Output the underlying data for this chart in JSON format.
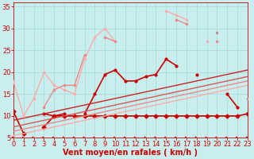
{
  "xlabel": "Vent moyen/en rafales ( km/h )",
  "xlim": [
    0,
    23
  ],
  "ylim": [
    5,
    36
  ],
  "yticks": [
    5,
    10,
    15,
    20,
    25,
    30,
    35
  ],
  "xticks": [
    0,
    1,
    2,
    3,
    4,
    5,
    6,
    7,
    8,
    9,
    10,
    11,
    12,
    13,
    14,
    15,
    16,
    17,
    18,
    19,
    20,
    21,
    22,
    23
  ],
  "bg_color": "#c8eeee",
  "grid_color": "#aadddd",
  "lines": [
    {
      "x": [
        0,
        1,
        2,
        3,
        4,
        5,
        6,
        7,
        8,
        9,
        10,
        11,
        12,
        13,
        14,
        15,
        16,
        17,
        18,
        19,
        20,
        21,
        22,
        23
      ],
      "y": [
        11,
        6,
        null,
        7.5,
        10,
        10,
        10,
        10,
        10,
        10,
        10,
        10,
        10,
        10,
        10,
        10,
        10,
        10,
        10,
        10,
        10,
        10,
        10,
        10.5
      ],
      "color": "#cc0000",
      "lw": 1.2,
      "marker": "D",
      "ms": 2.5,
      "has_markers": true
    },
    {
      "x": [
        0,
        1,
        2,
        3,
        4,
        5,
        6,
        7,
        8,
        9,
        10,
        11,
        12,
        13,
        14,
        15,
        16,
        17,
        18,
        19,
        20,
        21,
        22,
        23
      ],
      "y": [
        11,
        null,
        null,
        10.5,
        10,
        10.5,
        null,
        10.5,
        15,
        19.5,
        20.5,
        18,
        18,
        19,
        19.5,
        23,
        21.5,
        null,
        19.5,
        null,
        null,
        15,
        12,
        null
      ],
      "color": "#cc0000",
      "lw": 1.2,
      "marker": ".",
      "ms": 4,
      "has_markers": true
    },
    {
      "x": [
        0,
        1,
        2,
        3,
        4,
        5,
        6,
        7,
        8,
        9,
        10,
        11,
        12,
        13,
        14,
        15,
        16,
        17,
        18,
        19,
        20,
        21,
        22,
        23
      ],
      "y": [
        5.5,
        6,
        6.5,
        7,
        7.5,
        8,
        8.5,
        9,
        9.5,
        10,
        10.5,
        11,
        11.5,
        12,
        12.5,
        13,
        13.5,
        14,
        14.5,
        15,
        15.5,
        16,
        16.5,
        17
      ],
      "color": "#ffaaaa",
      "lw": 1.0,
      "marker": null,
      "ms": 0,
      "has_markers": false
    },
    {
      "x": [
        0,
        1,
        2,
        3,
        4,
        5,
        6,
        7,
        8,
        9,
        10,
        11,
        12,
        13,
        14,
        15,
        16,
        17,
        18,
        19,
        20,
        21,
        22,
        23
      ],
      "y": [
        6.5,
        7,
        7.5,
        8,
        8.5,
        9,
        9.5,
        10,
        10.5,
        11,
        11.5,
        12,
        12.5,
        13,
        13.5,
        14,
        14.5,
        15,
        15.5,
        16,
        16.5,
        17,
        17.5,
        18
      ],
      "color": "#ee8888",
      "lw": 1.0,
      "marker": null,
      "ms": 0,
      "has_markers": false
    },
    {
      "x": [
        0,
        1,
        2,
        3,
        4,
        5,
        6,
        7,
        8,
        9,
        10,
        11,
        12,
        13,
        14,
        15,
        16,
        17,
        18,
        19,
        20,
        21,
        22,
        23
      ],
      "y": [
        7.5,
        8,
        8.5,
        9,
        9.5,
        10,
        10.5,
        11,
        11.5,
        12,
        12.5,
        13,
        13.5,
        14,
        14.5,
        15,
        15.5,
        16,
        16.5,
        17,
        17.5,
        18,
        18.5,
        19
      ],
      "color": "#dd5555",
      "lw": 1.0,
      "marker": null,
      "ms": 0,
      "has_markers": false
    },
    {
      "x": [
        0,
        1,
        2,
        3,
        4,
        5,
        6,
        7,
        8,
        9,
        10,
        11,
        12,
        13,
        14,
        15,
        16,
        17,
        18,
        19,
        20,
        21,
        22,
        23
      ],
      "y": [
        9,
        9.5,
        10,
        10.5,
        11,
        11.5,
        12,
        12.5,
        13,
        13.5,
        14,
        14.5,
        15,
        15.5,
        16,
        16.5,
        17,
        17.5,
        18,
        18.5,
        19,
        19.5,
        20,
        20.5
      ],
      "color": "#cc2222",
      "lw": 1.0,
      "marker": null,
      "ms": 0,
      "has_markers": false
    },
    {
      "x": [
        0,
        1,
        2,
        3,
        4,
        5,
        6,
        7,
        8,
        9,
        10,
        11,
        12,
        13,
        14,
        15,
        16,
        17,
        18,
        19,
        20,
        21,
        22,
        23
      ],
      "y": [
        18,
        10,
        14,
        20,
        17,
        16,
        15,
        23,
        28,
        30,
        27,
        null,
        null,
        null,
        null,
        34,
        33,
        32,
        null,
        27,
        null,
        null,
        null,
        14
      ],
      "color": "#ffaaaa",
      "lw": 1.0,
      "marker": ".",
      "ms": 3,
      "has_markers": true
    },
    {
      "x": [
        0,
        1,
        2,
        3,
        4,
        5,
        6,
        7,
        8,
        9,
        10,
        11,
        12,
        13,
        14,
        15,
        16,
        17,
        18,
        19,
        20,
        21,
        22,
        23
      ],
      "y": [
        null,
        null,
        null,
        12,
        16,
        17,
        17,
        24,
        null,
        28,
        27,
        null,
        null,
        null,
        null,
        null,
        32,
        31,
        null,
        null,
        27,
        null,
        null,
        null
      ],
      "color": "#ee8888",
      "lw": 1.0,
      "marker": ".",
      "ms": 3,
      "has_markers": true
    },
    {
      "x": [
        0,
        1,
        2,
        3,
        4,
        5,
        6,
        7,
        8,
        9,
        10,
        11,
        12,
        13,
        14,
        15,
        16,
        17,
        18,
        19,
        20,
        21,
        22,
        23
      ],
      "y": [
        null,
        null,
        null,
        null,
        null,
        null,
        null,
        null,
        null,
        null,
        null,
        null,
        null,
        null,
        null,
        null,
        null,
        null,
        null,
        null,
        29,
        null,
        null,
        14
      ],
      "color": "#cc8888",
      "lw": 1.0,
      "marker": ".",
      "ms": 3,
      "has_markers": true
    }
  ],
  "arrow_color": "#cc0000",
  "xlabel_color": "#cc0000",
  "xlabel_fontsize": 7,
  "tick_fontsize": 6,
  "tick_color": "#cc0000"
}
